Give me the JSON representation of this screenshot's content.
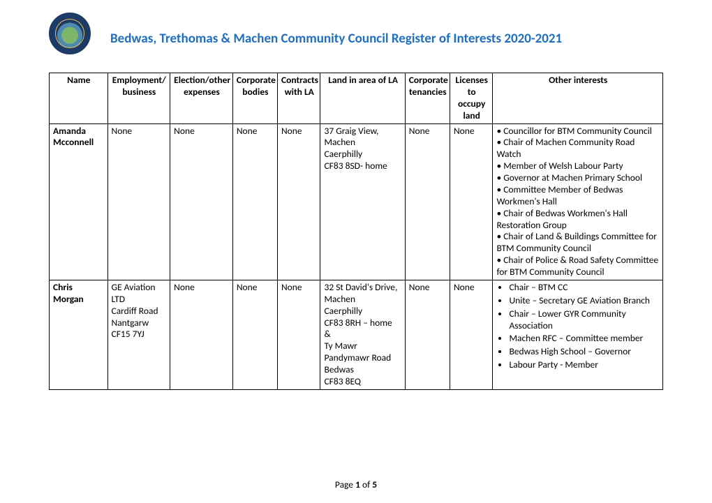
{
  "header": {
    "title": "Bedwas, Trethomas & Machen Community Council Register of Interests 2020-2021",
    "title_color": "#1f6fc0"
  },
  "table": {
    "columns": [
      "Name",
      "Employment/ business",
      "Election/other expenses",
      "Corporate bodies",
      "Contracts with LA",
      "Land in area of LA",
      "Corporate tenancies",
      "Licenses to occupy land",
      "Other interests"
    ],
    "rows": [
      {
        "name": "Amanda Mcconnell",
        "employment": "None",
        "election_expenses": "None",
        "corporate_bodies": "None",
        "contracts_la": "None",
        "land": "37 Graig View,\nMachen\nCaerphilly\nCF83 8SD- home",
        "corporate_tenancies": "None",
        "licenses": "None",
        "other_interests_plain": "• Councillor for BTM Community Council\n• Chair of Machen Community Road Watch\n• Member of Welsh Labour Party\n• Governor at Machen Primary School\n• Committee Member of Bedwas\n        Workmen's Hall\n• Chair of Bedwas Workmen's Hall Restoration Group\n• Chair of Land & Buildings Committee for BTM Community Council\n• Chair of Police & Road Safety Committee for BTM Community Council"
      },
      {
        "name": "Chris Morgan",
        "employment": "GE Aviation LTD\nCardiff Road\nNantgarw\nCF15 7YJ",
        "election_expenses": "None",
        "corporate_bodies": "None",
        "contracts_la": "None",
        "land": "32 St David's Drive,\nMachen\nCaerphilly\nCF83 8RH – home\n&\nTy Mawr\nPandymawr Road\nBedwas\nCF83 8EQ",
        "corporate_tenancies": "None",
        "licenses": "None",
        "other_interests_bullets": [
          "Chair – BTM CC",
          "Unite – Secretary GE Aviation Branch",
          "Chair – Lower GYR Community Association",
          "Machen RFC – Committee member",
          "Bedwas High School – Governor",
          "Labour Party - Member"
        ]
      }
    ]
  },
  "footer": {
    "prefix": "Page ",
    "current": "1",
    "of": " of ",
    "total": "5"
  },
  "colors": {
    "text": "#000000",
    "border": "#000000",
    "background": "#ffffff"
  },
  "typography": {
    "body_fontsize_pt": 11,
    "heading_fontsize_pt": 14,
    "font_family": "Calibri"
  }
}
